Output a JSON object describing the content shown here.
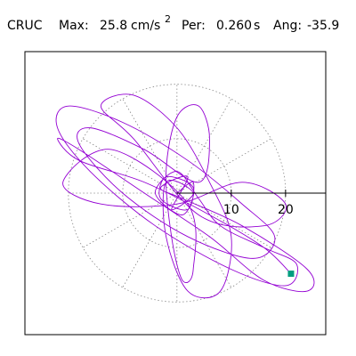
{
  "chart_data": {
    "type": "orbit",
    "header": {
      "station": "CRUC",
      "max_label": "Max:",
      "max_value": "25.8",
      "max_unit": "cm/s",
      "max_unit_sup": "2",
      "per_label": "Per:",
      "per_value": "0.260",
      "per_unit": "s",
      "ang_label": "Ang:",
      "ang_value": "-35.9"
    },
    "xlim": [
      -28,
      27.4
    ],
    "ylim": [
      -26,
      26
    ],
    "xticks": [
      10,
      20
    ],
    "rticks": [
      10,
      20
    ],
    "color": "#9400d3",
    "end_marker_color": "#009e80",
    "x": [
      0,
      3,
      2,
      -3,
      -2,
      3,
      1,
      -4,
      0,
      4,
      8,
      16,
      22,
      20,
      10,
      -4,
      -16,
      -22,
      -20,
      -10,
      2,
      12,
      18,
      14,
      2,
      -10,
      -18,
      -16,
      -6,
      4,
      6,
      4,
      0,
      -2,
      -1,
      1,
      3,
      2,
      -12,
      -21,
      -14,
      0,
      12,
      20,
      16,
      4,
      -8,
      -14,
      -8,
      0,
      6,
      10,
      8,
      2,
      -2,
      -2,
      3,
      -1,
      2,
      -3,
      1,
      12,
      24,
      24,
      16,
      6,
      -6,
      -18,
      -22,
      -18,
      -6,
      6,
      16,
      21
    ],
    "values": [
      0,
      2,
      -3,
      -1,
      3,
      1,
      -4,
      0,
      4,
      -1,
      -6,
      -10,
      -13,
      -17,
      -14,
      -6,
      4,
      12,
      16,
      13,
      6,
      -2,
      -8,
      -12,
      -8,
      0,
      9,
      12,
      8,
      2,
      10,
      16,
      14,
      4,
      -8,
      -16,
      -14,
      -2,
      8,
      2,
      -2,
      -2,
      2,
      -2,
      -6,
      -4,
      10,
      16,
      18,
      12,
      2,
      -8,
      -18,
      -18,
      -8,
      2,
      0,
      -3,
      3,
      1,
      -1,
      -6,
      -14,
      -18,
      -16,
      -8,
      0,
      8,
      10,
      6,
      2,
      -4,
      -10,
      -14.8
    ]
  }
}
